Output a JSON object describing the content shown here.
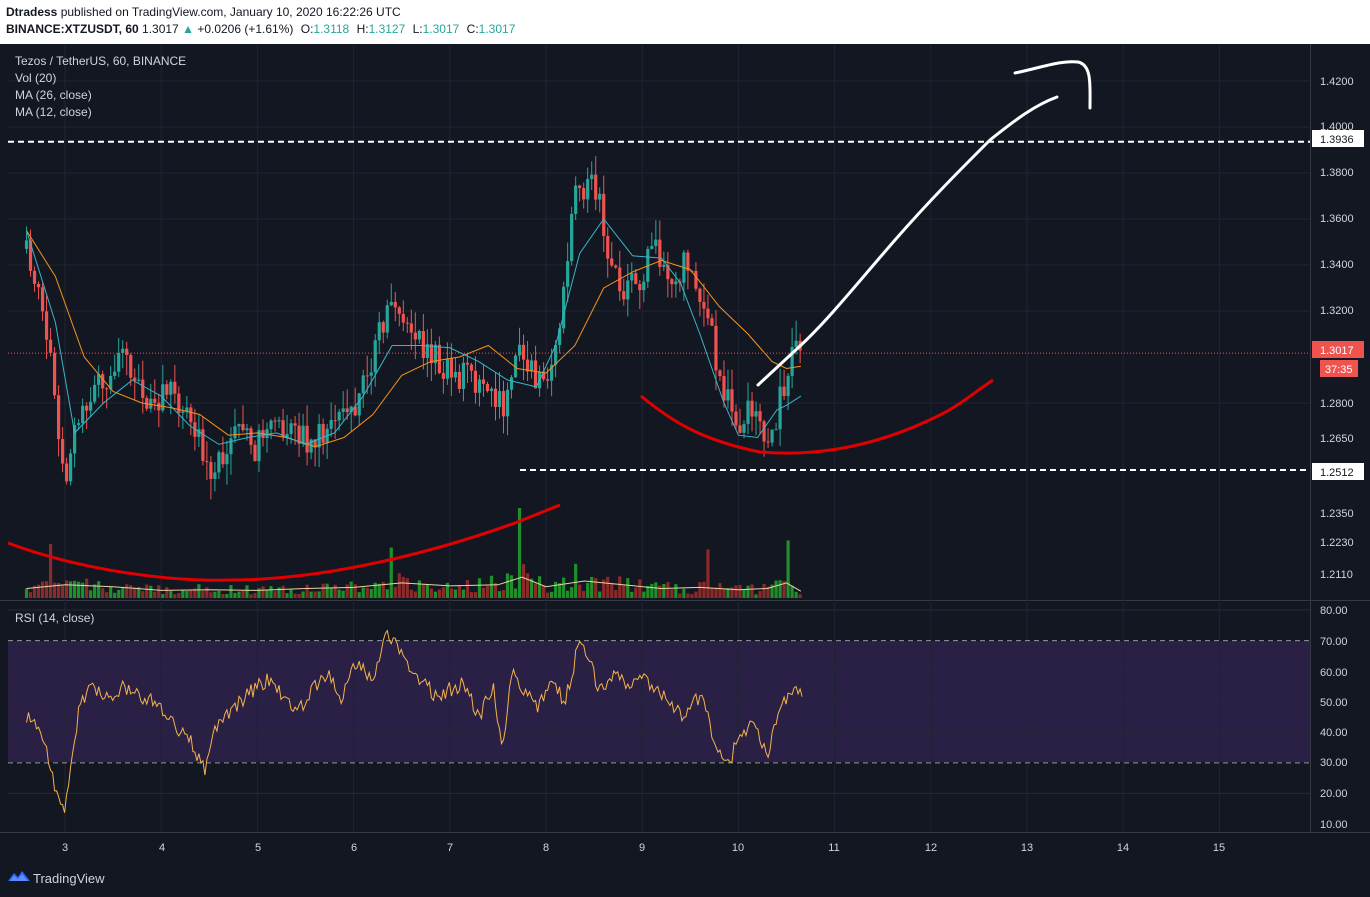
{
  "header": {
    "author": "Dtradess",
    "published": "published on TradingView.com, January 10, 2020 16:22:26 UTC",
    "symbol_line": "BINANCE:XTZUSDT, 60",
    "last": "1.3017",
    "change_arrow": "▲",
    "change": "+0.0206 (+1.61%)",
    "o_label": "O:",
    "o_value": "1.3118",
    "h_label": "H:",
    "h_value": "1.3127",
    "l_label": "L:",
    "l_value": "1.3017",
    "c_label": "C:",
    "c_value": "1.3017"
  },
  "legend": {
    "title": "Tezos / TetherUS, 60, BINANCE",
    "vol": "Vol (20)",
    "ma26": "MA (26, close)",
    "ma12": "MA (12, close)",
    "rsi": "RSI (14, close)"
  },
  "price_axis": {
    "ticks": [
      "1.4200",
      "1.4000",
      "1.3800",
      "1.3600",
      "1.3400",
      "1.3200",
      "1.2800",
      "1.2650",
      "1.2350",
      "1.2230",
      "1.2110"
    ],
    "labels": [
      {
        "text": "1.3936",
        "style": "white"
      },
      {
        "text": "1.3017",
        "style": "red"
      },
      {
        "text": "37:35",
        "style": "red"
      },
      {
        "text": "1.2512",
        "style": "white"
      }
    ]
  },
  "rsi_axis": {
    "ticks": [
      "80.00",
      "70.00",
      "60.00",
      "50.00",
      "40.00",
      "30.00",
      "20.00",
      "10.00"
    ]
  },
  "time_axis": {
    "ticks": [
      "3",
      "4",
      "5",
      "6",
      "7",
      "8",
      "9",
      "10",
      "11",
      "12",
      "13",
      "14",
      "15"
    ]
  },
  "footer": {
    "brand": "TradingView",
    "logo_icon": "tradingview-logo-icon"
  },
  "colors": {
    "background": "#131722",
    "up": "#26a69a",
    "down": "#ef5350",
    "ma12": "#3ab5c9",
    "ma26": "#f7931a",
    "rsi": "#f6b34b",
    "annotation_white": "#ffffff",
    "annotation_red": "#e00000"
  },
  "chart_data": {
    "type": "candlestick",
    "title": "Tezos / TetherUS, 60, BINANCE",
    "interval": "60",
    "x_unit": "day (January 2020)",
    "xlim": [
      2.55,
      15.95
    ],
    "ylim": [
      1.205,
      1.432
    ],
    "price_levels": [
      {
        "name": "resistance",
        "value": 1.3936,
        "style": "dashed"
      },
      {
        "name": "support",
        "value": 1.2512,
        "style": "dashed"
      },
      {
        "name": "last_price",
        "value": 1.3017,
        "style": "dotted"
      }
    ],
    "price_path": {
      "x": [
        2.6,
        2.75,
        2.9,
        3.0,
        3.15,
        3.35,
        3.6,
        3.85,
        4.1,
        4.3,
        4.5,
        4.75,
        5.0,
        5.25,
        5.5,
        5.75,
        6.0,
        6.2,
        6.4,
        6.6,
        6.8,
        7.0,
        7.2,
        7.4,
        7.55,
        7.75,
        7.9,
        8.1,
        8.3,
        8.5,
        8.65,
        8.8,
        9.0,
        9.15,
        9.3,
        9.5,
        9.65,
        9.8,
        9.95,
        10.1,
        10.3,
        10.45,
        10.55,
        10.65
      ],
      "close": [
        1.347,
        1.33,
        1.28,
        1.25,
        1.275,
        1.29,
        1.297,
        1.282,
        1.283,
        1.27,
        1.253,
        1.265,
        1.261,
        1.27,
        1.265,
        1.268,
        1.278,
        1.3,
        1.325,
        1.312,
        1.3,
        1.295,
        1.29,
        1.288,
        1.28,
        1.305,
        1.29,
        1.3,
        1.37,
        1.378,
        1.345,
        1.325,
        1.335,
        1.349,
        1.33,
        1.345,
        1.32,
        1.295,
        1.27,
        1.275,
        1.262,
        1.283,
        1.3,
        1.3017
      ]
    },
    "volume_path": {
      "x": [
        2.6,
        3.0,
        3.5,
        4.0,
        4.5,
        5.0,
        5.5,
        6.0,
        6.5,
        7.0,
        7.5,
        7.75,
        8.0,
        8.4,
        8.8,
        9.2,
        9.6,
        10.0,
        10.3,
        10.5,
        10.65
      ],
      "value": [
        25,
        35,
        30,
        20,
        22,
        20,
        25,
        28,
        40,
        32,
        35,
        55,
        30,
        45,
        35,
        25,
        28,
        22,
        25,
        40,
        18
      ]
    },
    "volume_spikes": [
      {
        "x": 2.85,
        "value": 150
      },
      {
        "x": 6.4,
        "value": 140
      },
      {
        "x": 7.72,
        "value": 250
      },
      {
        "x": 8.3,
        "value": 95
      },
      {
        "x": 9.7,
        "value": 135
      },
      {
        "x": 10.52,
        "value": 160
      }
    ],
    "ma12": {
      "x": [
        2.6,
        2.9,
        3.1,
        3.4,
        3.7,
        4.0,
        4.3,
        4.6,
        4.9,
        5.2,
        5.5,
        5.8,
        6.1,
        6.4,
        6.7,
        7.0,
        7.3,
        7.6,
        7.9,
        8.1,
        8.35,
        8.6,
        8.9,
        9.2,
        9.4,
        9.6,
        9.85,
        10.0,
        10.2,
        10.4,
        10.5,
        10.65
      ],
      "value": [
        1.355,
        1.315,
        1.267,
        1.28,
        1.29,
        1.283,
        1.27,
        1.262,
        1.265,
        1.267,
        1.262,
        1.267,
        1.283,
        1.305,
        1.305,
        1.304,
        1.298,
        1.29,
        1.287,
        1.305,
        1.345,
        1.36,
        1.344,
        1.343,
        1.332,
        1.31,
        1.28,
        1.266,
        1.265,
        1.277,
        1.279,
        1.283
      ]
    },
    "ma26": {
      "x": [
        2.6,
        2.9,
        3.2,
        3.5,
        3.8,
        4.1,
        4.4,
        4.7,
        5.0,
        5.3,
        5.6,
        5.9,
        6.2,
        6.5,
        6.8,
        7.1,
        7.4,
        7.7,
        8.0,
        8.3,
        8.6,
        8.9,
        9.2,
        9.5,
        9.8,
        10.1,
        10.35,
        10.5,
        10.65
      ],
      "value": [
        1.355,
        1.335,
        1.3,
        1.285,
        1.28,
        1.278,
        1.275,
        1.266,
        1.267,
        1.265,
        1.261,
        1.265,
        1.275,
        1.292,
        1.298,
        1.3,
        1.305,
        1.295,
        1.293,
        1.305,
        1.33,
        1.337,
        1.342,
        1.338,
        1.322,
        1.31,
        1.298,
        1.295,
        1.296
      ]
    },
    "rsi": {
      "ylim": [
        10,
        80
      ],
      "overbought": 70,
      "oversold": 30,
      "x": [
        2.6,
        2.75,
        2.9,
        3.0,
        3.05,
        3.15,
        3.25,
        3.35,
        3.5,
        3.6,
        3.75,
        3.9,
        4.0,
        4.15,
        4.3,
        4.45,
        4.55,
        4.7,
        4.85,
        5.0,
        5.15,
        5.3,
        5.45,
        5.6,
        5.75,
        5.85,
        6.0,
        6.2,
        6.35,
        6.45,
        6.55,
        6.7,
        6.85,
        7.0,
        7.15,
        7.3,
        7.45,
        7.55,
        7.65,
        7.75,
        7.9,
        8.05,
        8.2,
        8.35,
        8.45,
        8.55,
        8.7,
        8.85,
        9.0,
        9.15,
        9.3,
        9.45,
        9.6,
        9.75,
        9.9,
        10.0,
        10.1,
        10.2,
        10.3,
        10.4,
        10.5,
        10.55,
        10.65
      ],
      "value": [
        45,
        42,
        22,
        14,
        28,
        48,
        55,
        53,
        50,
        55,
        52,
        51,
        47,
        42,
        38,
        27,
        42,
        46,
        51,
        55,
        58,
        50,
        48,
        55,
        60,
        50,
        62,
        58,
        72,
        68,
        62,
        57,
        52,
        54,
        56,
        45,
        55,
        35,
        60,
        55,
        48,
        57,
        50,
        70,
        65,
        53,
        60,
        55,
        58,
        55,
        50,
        45,
        52,
        38,
        30,
        38,
        42,
        40,
        32,
        44,
        52,
        55,
        53
      ]
    },
    "annotations": [
      {
        "type": "white-arrow-up",
        "from": [
          10.2,
          1.2875
        ],
        "to": [
          13.35,
          1.412
        ]
      },
      {
        "type": "red-cup-curve",
        "from": [
          9.0,
          1.283
        ],
        "to": [
          12.65,
          1.2935
        ]
      },
      {
        "type": "red-volume-curve",
        "description": "rounded bottom on volume pane"
      }
    ]
  }
}
